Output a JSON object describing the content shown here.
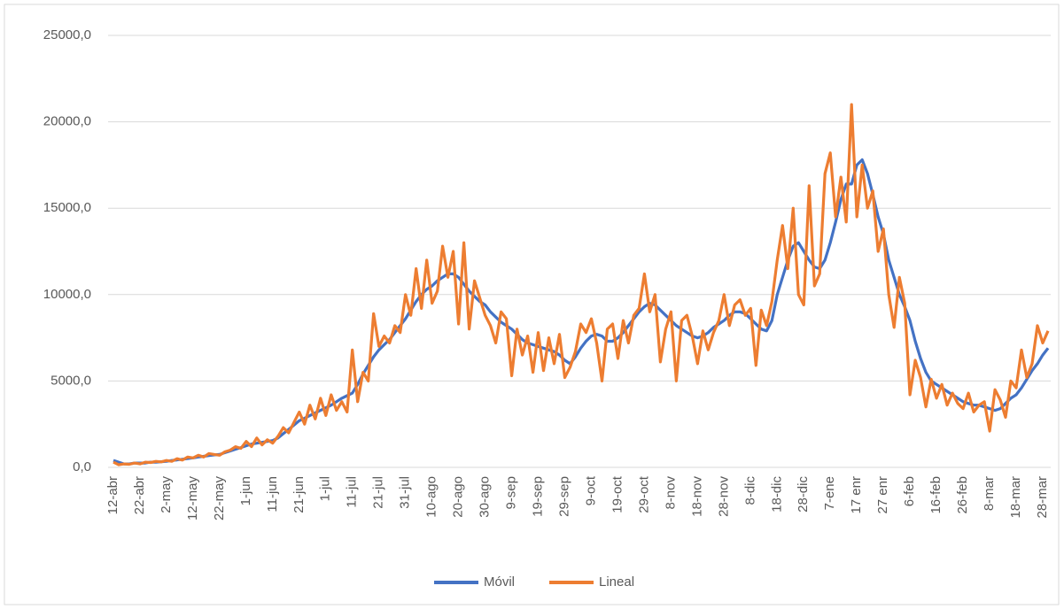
{
  "chart_data": {
    "type": "line",
    "categories": [
      "12-abr",
      null,
      null,
      null,
      null,
      "22-abr",
      null,
      null,
      null,
      null,
      "2-may",
      null,
      null,
      null,
      null,
      "12-may",
      null,
      null,
      null,
      null,
      "22-may",
      null,
      null,
      null,
      null,
      "1-jun",
      null,
      null,
      null,
      null,
      "11-jun",
      null,
      null,
      null,
      null,
      "21-jun",
      null,
      null,
      null,
      null,
      "1-jul",
      null,
      null,
      null,
      null,
      "11-jul",
      null,
      null,
      null,
      null,
      "21-jul",
      null,
      null,
      null,
      null,
      "31-jul",
      null,
      null,
      null,
      null,
      "10-ago",
      null,
      null,
      null,
      null,
      "20-ago",
      null,
      null,
      null,
      null,
      "30-ago",
      null,
      null,
      null,
      null,
      "9-sep",
      null,
      null,
      null,
      null,
      "19-sep",
      null,
      null,
      null,
      null,
      "29-sep",
      null,
      null,
      null,
      null,
      "9-oct",
      null,
      null,
      null,
      null,
      "19-oct",
      null,
      null,
      null,
      null,
      "29-oct",
      null,
      null,
      null,
      null,
      "8-nov",
      null,
      null,
      null,
      null,
      "18-nov",
      null,
      null,
      null,
      null,
      "28-nov",
      null,
      null,
      null,
      null,
      "8-dic",
      null,
      null,
      null,
      null,
      "18-dic",
      null,
      null,
      null,
      null,
      "28-dic",
      null,
      null,
      null,
      null,
      "7-ene",
      null,
      null,
      null,
      null,
      "17 enr",
      null,
      null,
      null,
      null,
      "27 enr",
      null,
      null,
      null,
      null,
      "6-feb",
      null,
      null,
      null,
      null,
      "16-feb",
      null,
      null,
      null,
      null,
      "26-feb",
      null,
      null,
      null,
      null,
      "8-mar",
      null,
      null,
      null,
      null,
      "18-mar",
      null,
      null,
      null,
      null,
      "28-mar",
      null
    ],
    "series": [
      {
        "name": "Móvil",
        "color": "#4472c4",
        "values": [
          400,
          300,
          200,
          200,
          250,
          250,
          250,
          300,
          300,
          330,
          350,
          400,
          430,
          470,
          510,
          550,
          600,
          640,
          680,
          720,
          750,
          850,
          950,
          1050,
          1150,
          1250,
          1350,
          1400,
          1450,
          1500,
          1550,
          1700,
          1950,
          2200,
          2450,
          2700,
          2850,
          3000,
          3150,
          3300,
          3450,
          3600,
          3800,
          4000,
          4150,
          4300,
          4800,
          5400,
          5900,
          6400,
          6800,
          7100,
          7400,
          7800,
          8200,
          8600,
          9100,
          9600,
          10000,
          10300,
          10500,
          10800,
          11000,
          11200,
          11200,
          11000,
          10600,
          10200,
          9900,
          9600,
          9400,
          9000,
          8700,
          8400,
          8200,
          8000,
          7700,
          7400,
          7200,
          7100,
          7000,
          6900,
          6800,
          6700,
          6500,
          6200,
          6000,
          6400,
          6900,
          7300,
          7600,
          7700,
          7600,
          7300,
          7300,
          7500,
          7800,
          8200,
          8600,
          9000,
          9300,
          9500,
          9400,
          9100,
          8800,
          8500,
          8200,
          8000,
          7800,
          7600,
          7500,
          7600,
          7800,
          8100,
          8300,
          8500,
          8800,
          9000,
          9000,
          8900,
          8600,
          8300,
          8000,
          7900,
          8500,
          10000,
          11000,
          12000,
          12800,
          13000,
          12500,
          12000,
          11600,
          11500,
          12000,
          13000,
          14200,
          15500,
          16400,
          16400,
          17500,
          17800,
          17000,
          15800,
          14500,
          13500,
          12000,
          11000,
          10000,
          9300,
          8500,
          7300,
          6300,
          5500,
          5000,
          4800,
          4600,
          4400,
          4200,
          4000,
          3800,
          3700,
          3600,
          3600,
          3500,
          3400,
          3300,
          3400,
          3700,
          4000,
          4200,
          4600,
          5100,
          5600,
          6000,
          6500,
          6900
        ]
      },
      {
        "name": "Lineal",
        "color": "#ed7d31",
        "values": [
          300,
          150,
          200,
          180,
          250,
          200,
          300,
          280,
          350,
          320,
          400,
          350,
          500,
          420,
          600,
          550,
          700,
          600,
          800,
          750,
          700,
          900,
          1000,
          1200,
          1100,
          1500,
          1200,
          1700,
          1300,
          1600,
          1400,
          1800,
          2300,
          2000,
          2600,
          3200,
          2500,
          3600,
          2800,
          4000,
          3000,
          4200,
          3300,
          3800,
          3200,
          6800,
          3800,
          5500,
          5000,
          8900,
          7000,
          7600,
          7200,
          8200,
          7800,
          10000,
          8800,
          11500,
          9200,
          12000,
          9500,
          10200,
          12800,
          11000,
          12500,
          8300,
          13000,
          8000,
          10800,
          9800,
          8800,
          8200,
          7200,
          9000,
          8600,
          5300,
          8000,
          6500,
          7600,
          5500,
          7800,
          5600,
          7500,
          6000,
          7700,
          5200,
          5800,
          6700,
          8300,
          7800,
          8600,
          7200,
          5000,
          8000,
          8300,
          6300,
          8500,
          7200,
          8800,
          9200,
          11200,
          9000,
          10000,
          6100,
          8000,
          9000,
          5000,
          8500,
          8800,
          7600,
          6000,
          7900,
          6800,
          7800,
          8500,
          10000,
          8200,
          9400,
          9700,
          8800,
          9200,
          5900,
          9100,
          8200,
          9600,
          12000,
          14000,
          11500,
          15000,
          10000,
          9400,
          16300,
          10500,
          11200,
          17000,
          18200,
          14500,
          16800,
          14200,
          21000,
          14500,
          17500,
          15000,
          16000,
          12500,
          13800,
          10000,
          8100,
          11000,
          9500,
          4200,
          6200,
          5200,
          3500,
          5100,
          4000,
          4800,
          3600,
          4300,
          3700,
          3400,
          4300,
          3200,
          3600,
          3800,
          2100,
          4500,
          3900,
          2900,
          5000,
          4600,
          6800,
          5200,
          6000,
          8200,
          7200,
          7900
        ]
      }
    ],
    "ylim": [
      0,
      25000
    ],
    "yticks": [
      {
        "value": 0,
        "label": "0,0"
      },
      {
        "value": 5000,
        "label": "5000,0"
      },
      {
        "value": 10000,
        "label": "10000,0"
      },
      {
        "value": 15000,
        "label": "15000,0"
      },
      {
        "value": 20000,
        "label": "20000,0"
      },
      {
        "value": 25000,
        "label": "25000,0"
      }
    ],
    "grid": true,
    "legend": "bottom"
  }
}
